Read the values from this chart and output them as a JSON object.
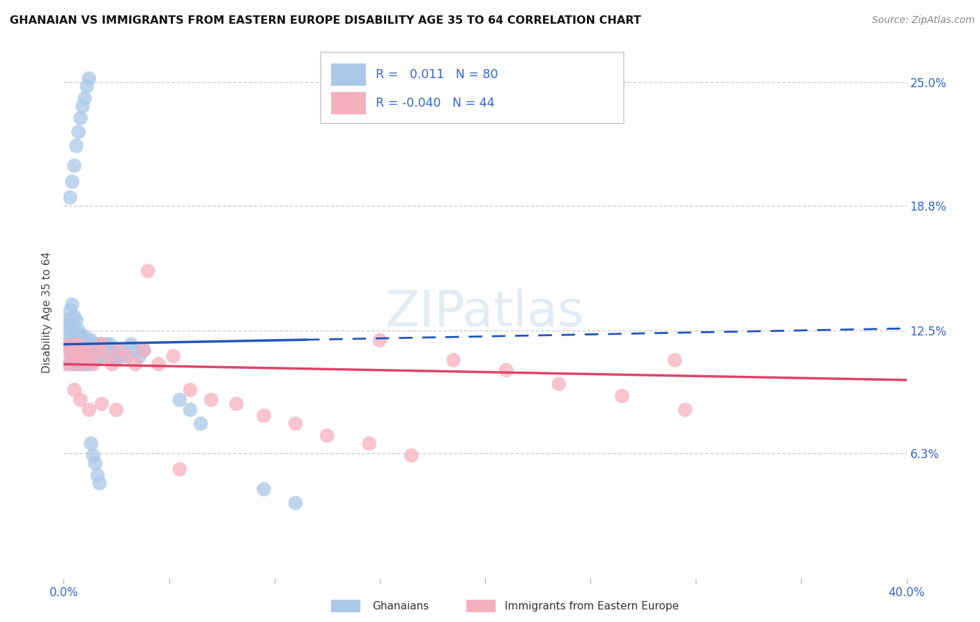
{
  "title": "GHANAIAN VS IMMIGRANTS FROM EASTERN EUROPE DISABILITY AGE 35 TO 64 CORRELATION CHART",
  "source": "Source: ZipAtlas.com",
  "ylabel": "Disability Age 35 to 64",
  "ytick_values": [
    0.063,
    0.125,
    0.188,
    0.25
  ],
  "ytick_labels": [
    "6.3%",
    "12.5%",
    "18.8%",
    "25.0%"
  ],
  "xlim": [
    0.0,
    0.4
  ],
  "ylim": [
    0.0,
    0.268
  ],
  "blue_color": "#aac8e8",
  "pink_color": "#f5b0c0",
  "blue_line_color": "#2255bb",
  "pink_line_color": "#dd4466",
  "blue_R": 0.011,
  "blue_N": 80,
  "pink_R": -0.04,
  "pink_N": 44,
  "blue_trend_x0": 0.0,
  "blue_trend_y0": 0.118,
  "blue_trend_x1": 0.4,
  "blue_trend_y1": 0.126,
  "blue_solid_split": 0.115,
  "pink_trend_x0": 0.0,
  "pink_trend_y0": 0.108,
  "pink_trend_x1": 0.4,
  "pink_trend_y1": 0.1,
  "ghanaians_x": [
    0.001,
    0.001,
    0.002,
    0.002,
    0.002,
    0.003,
    0.003,
    0.003,
    0.003,
    0.004,
    0.004,
    0.004,
    0.004,
    0.005,
    0.005,
    0.005,
    0.005,
    0.006,
    0.006,
    0.006,
    0.006,
    0.007,
    0.007,
    0.007,
    0.008,
    0.008,
    0.008,
    0.009,
    0.009,
    0.01,
    0.01,
    0.01,
    0.011,
    0.011,
    0.012,
    0.012,
    0.013,
    0.013,
    0.014,
    0.015,
    0.015,
    0.016,
    0.017,
    0.018,
    0.018,
    0.019,
    0.02,
    0.021,
    0.022,
    0.023,
    0.024,
    0.025,
    0.026,
    0.027,
    0.028,
    0.03,
    0.032,
    0.034,
    0.036,
    0.038,
    0.003,
    0.004,
    0.005,
    0.006,
    0.007,
    0.008,
    0.009,
    0.01,
    0.011,
    0.012,
    0.013,
    0.014,
    0.015,
    0.016,
    0.017,
    0.055,
    0.06,
    0.065,
    0.095,
    0.11
  ],
  "ghanaians_y": [
    0.118,
    0.128,
    0.115,
    0.122,
    0.13,
    0.108,
    0.118,
    0.125,
    0.135,
    0.112,
    0.12,
    0.128,
    0.138,
    0.11,
    0.118,
    0.125,
    0.132,
    0.108,
    0.115,
    0.122,
    0.13,
    0.112,
    0.118,
    0.125,
    0.108,
    0.115,
    0.122,
    0.11,
    0.118,
    0.108,
    0.115,
    0.122,
    0.11,
    0.118,
    0.108,
    0.118,
    0.112,
    0.12,
    0.115,
    0.11,
    0.118,
    0.115,
    0.118,
    0.112,
    0.118,
    0.115,
    0.118,
    0.112,
    0.118,
    0.115,
    0.112,
    0.11,
    0.115,
    0.112,
    0.115,
    0.112,
    0.118,
    0.115,
    0.112,
    0.115,
    0.192,
    0.2,
    0.208,
    0.218,
    0.225,
    0.232,
    0.238,
    0.242,
    0.248,
    0.252,
    0.068,
    0.062,
    0.058,
    0.052,
    0.048,
    0.09,
    0.085,
    0.078,
    0.045,
    0.038
  ],
  "eastern_eu_x": [
    0.001,
    0.002,
    0.003,
    0.004,
    0.005,
    0.006,
    0.007,
    0.008,
    0.009,
    0.01,
    0.012,
    0.014,
    0.016,
    0.018,
    0.02,
    0.023,
    0.026,
    0.03,
    0.034,
    0.038,
    0.045,
    0.052,
    0.06,
    0.07,
    0.082,
    0.095,
    0.11,
    0.125,
    0.145,
    0.165,
    0.185,
    0.21,
    0.235,
    0.265,
    0.295,
    0.005,
    0.008,
    0.012,
    0.018,
    0.025,
    0.15,
    0.29,
    0.04,
    0.055
  ],
  "eastern_eu_y": [
    0.108,
    0.115,
    0.118,
    0.112,
    0.108,
    0.115,
    0.118,
    0.112,
    0.108,
    0.115,
    0.112,
    0.108,
    0.115,
    0.118,
    0.112,
    0.108,
    0.115,
    0.112,
    0.108,
    0.115,
    0.108,
    0.112,
    0.095,
    0.09,
    0.088,
    0.082,
    0.078,
    0.072,
    0.068,
    0.062,
    0.11,
    0.105,
    0.098,
    0.092,
    0.085,
    0.095,
    0.09,
    0.085,
    0.088,
    0.085,
    0.12,
    0.11,
    0.155,
    0.055
  ]
}
